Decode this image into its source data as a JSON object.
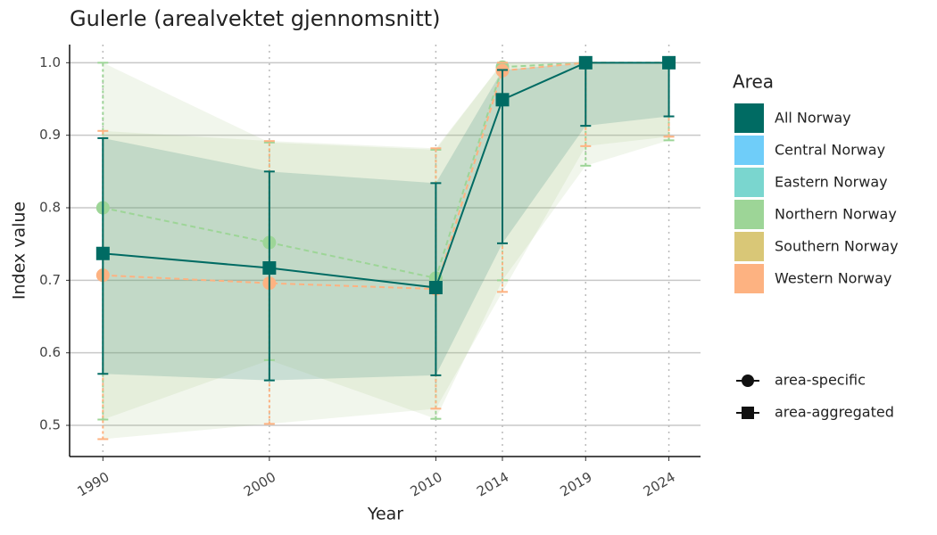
{
  "chart_data": {
    "type": "line",
    "title": "Gulerle (arealvektet gjennomsnitt)",
    "x_label": "Year",
    "y_label": "Index value",
    "x": [
      1990,
      2000,
      2010,
      2014,
      2019,
      2024
    ],
    "xlim": [
      1988.0,
      2025.9
    ],
    "xticks": [
      1990,
      2000,
      2010,
      2014,
      2019,
      2024
    ],
    "ylim": [
      0.457,
      1.025
    ],
    "yticks": [
      {
        "value": 0.5,
        "label": "0.5"
      },
      {
        "value": 0.6,
        "label": "0.6"
      },
      {
        "value": 0.7,
        "label": "0.7"
      },
      {
        "value": 0.8,
        "label": "0.8"
      },
      {
        "value": 0.9,
        "label": "0.9"
      },
      {
        "value": 1.0,
        "label": "1.0"
      }
    ],
    "grid": true,
    "legend_title": "Area",
    "legend_position": "right",
    "series": [
      {
        "name": "All Norway",
        "color": "#006b63",
        "shape": "square",
        "dashed": false,
        "values": [
          0.737,
          0.717,
          0.69,
          0.949,
          1.0,
          1.0
        ],
        "lower": [
          0.571,
          0.562,
          0.569,
          0.751,
          0.913,
          0.926
        ],
        "upper": [
          0.896,
          0.85,
          0.834,
          0.99,
          1.0,
          1.0
        ]
      },
      {
        "name": "Central Norway",
        "color": "#6fcdf9",
        "shape": "circle",
        "dashed": true,
        "values": [
          null,
          null,
          null,
          null,
          null,
          null
        ],
        "lower": [
          null,
          null,
          null,
          null,
          null,
          null
        ],
        "upper": [
          null,
          null,
          null,
          null,
          null,
          null
        ]
      },
      {
        "name": "Eastern Norway",
        "color": "#7ad6cf",
        "shape": "circle",
        "dashed": true,
        "values": [
          null,
          null,
          null,
          null,
          null,
          null
        ],
        "lower": [
          null,
          null,
          null,
          null,
          null,
          null
        ],
        "upper": [
          null,
          null,
          null,
          null,
          null,
          null
        ]
      },
      {
        "name": "Northern Norway",
        "color": "#9dd597",
        "shape": "circle",
        "dashed": true,
        "values": [
          0.8,
          0.752,
          0.703,
          0.994,
          1.0,
          1.0
        ],
        "lower": [
          0.508,
          0.59,
          0.509,
          0.7,
          0.858,
          0.893
        ],
        "upper": [
          1.0,
          0.89,
          0.88,
          1.0,
          1.0,
          1.0
        ]
      },
      {
        "name": "Southern Norway",
        "color": "#d9c777",
        "shape": "circle",
        "dashed": true,
        "values": [
          null,
          null,
          null,
          null,
          null,
          null
        ],
        "lower": [
          null,
          null,
          null,
          null,
          null,
          null
        ],
        "upper": [
          null,
          null,
          null,
          null,
          null,
          null
        ]
      },
      {
        "name": "Western Norway",
        "color": "#fdb281",
        "shape": "circle",
        "dashed": true,
        "values": [
          0.707,
          0.696,
          0.688,
          0.989,
          1.0,
          1.0
        ],
        "lower": [
          0.481,
          0.502,
          0.523,
          0.684,
          0.885,
          0.898
        ],
        "upper": [
          0.906,
          0.892,
          0.882,
          1.0,
          1.0,
          1.0
        ]
      }
    ],
    "shape_legend": [
      {
        "label": "area-specific",
        "shape": "circle"
      },
      {
        "label": "area-aggregated",
        "shape": "square"
      }
    ]
  }
}
